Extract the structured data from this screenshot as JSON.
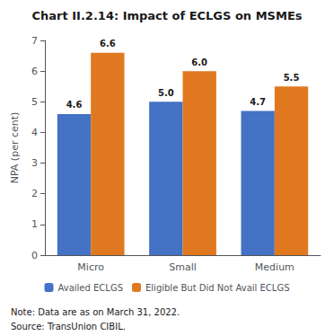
{
  "chart_data": {
    "type": "bar",
    "title": "Chart II.2.14: Impact of ECLGS on MSMEs",
    "categories": [
      "Micro",
      "Small",
      "Medium"
    ],
    "series": [
      {
        "name": "Availed ECLGS",
        "color": "#4472c4",
        "values": [
          4.6,
          5.0,
          4.7
        ],
        "value_labels": [
          "4.6",
          "5.0",
          "4.7"
        ]
      },
      {
        "name": "Eligible But Did Not Avail ECLGS",
        "color": "#e07820",
        "values": [
          6.6,
          6.0,
          5.5
        ],
        "value_labels": [
          "6.6",
          "6.0",
          "5.5"
        ]
      }
    ],
    "ylabel": "NPA (per cent)",
    "ylim": [
      0,
      7
    ],
    "yticks": [
      0,
      1,
      2,
      3,
      4,
      5,
      6,
      7
    ],
    "grid": false,
    "legend": "bottom",
    "data_labels": true,
    "annotations": [
      "Note: Data are as on March 31, 2022.",
      "Source: TransUnion CIBIL."
    ]
  }
}
